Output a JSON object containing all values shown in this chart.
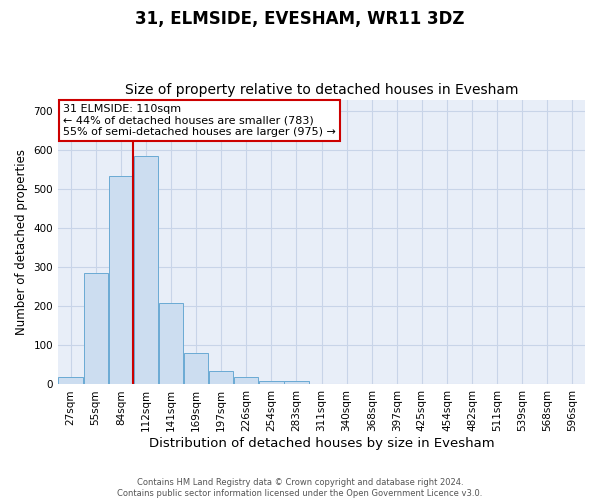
{
  "title": "31, ELMSIDE, EVESHAM, WR11 3DZ",
  "subtitle": "Size of property relative to detached houses in Evesham",
  "xlabel": "Distribution of detached houses by size in Evesham",
  "ylabel": "Number of detached properties",
  "footer_line1": "Contains HM Land Registry data © Crown copyright and database right 2024.",
  "footer_line2": "Contains public sector information licensed under the Open Government Licence v3.0.",
  "bin_labels": [
    "27sqm",
    "55sqm",
    "84sqm",
    "112sqm",
    "141sqm",
    "169sqm",
    "197sqm",
    "226sqm",
    "254sqm",
    "283sqm",
    "311sqm",
    "340sqm",
    "368sqm",
    "397sqm",
    "425sqm",
    "454sqm",
    "482sqm",
    "511sqm",
    "539sqm",
    "568sqm",
    "596sqm"
  ],
  "bar_values": [
    20,
    285,
    535,
    585,
    210,
    80,
    35,
    20,
    10,
    10,
    0,
    0,
    0,
    0,
    0,
    0,
    0,
    0,
    0,
    0,
    0
  ],
  "bar_color": "#ccddf0",
  "bar_edge_color": "#6aaad4",
  "grid_color": "#c8d4e8",
  "background_color": "#e8eef8",
  "annotation_line1": "31 ELMSIDE: 110sqm",
  "annotation_line2": "← 44% of detached houses are smaller (783)",
  "annotation_line3": "55% of semi-detached houses are larger (975) →",
  "vline_color": "#cc0000",
  "annotation_box_edge_color": "#cc0000",
  "ylim": [
    0,
    730
  ],
  "yticks": [
    0,
    100,
    200,
    300,
    400,
    500,
    600,
    700
  ],
  "title_fontsize": 12,
  "subtitle_fontsize": 10,
  "tick_fontsize": 7.5,
  "ylabel_fontsize": 8.5,
  "xlabel_fontsize": 9.5,
  "annotation_fontsize": 8,
  "vline_bar_index": 2.5
}
